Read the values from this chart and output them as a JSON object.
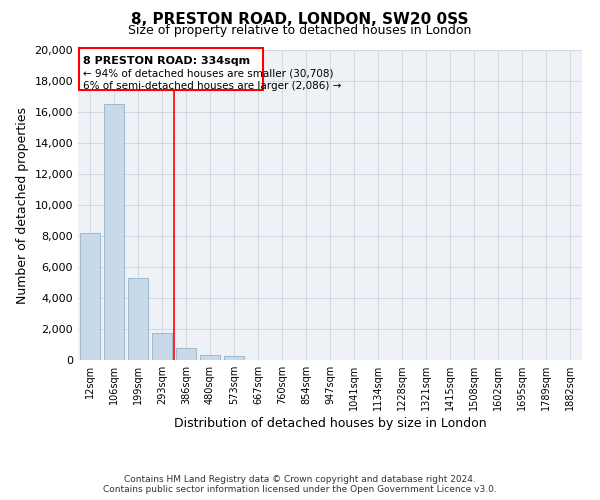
{
  "title": "8, PRESTON ROAD, LONDON, SW20 0SS",
  "subtitle": "Size of property relative to detached houses in London",
  "xlabel": "Distribution of detached houses by size in London",
  "ylabel": "Number of detached properties",
  "bar_labels": [
    "12sqm",
    "106sqm",
    "199sqm",
    "293sqm",
    "386sqm",
    "480sqm",
    "573sqm",
    "667sqm",
    "760sqm",
    "854sqm",
    "947sqm",
    "1041sqm",
    "1134sqm",
    "1228sqm",
    "1321sqm",
    "1415sqm",
    "1508sqm",
    "1602sqm",
    "1695sqm",
    "1789sqm",
    "1882sqm"
  ],
  "bar_values": [
    8200,
    16500,
    5300,
    1750,
    750,
    300,
    230,
    0,
    0,
    0,
    0,
    0,
    0,
    0,
    0,
    0,
    0,
    0,
    0,
    0,
    0
  ],
  "bar_color": "#c8daea",
  "bar_edge_color": "#a0b8cc",
  "vline_x": 3.5,
  "vline_color": "red",
  "annotation_title": "8 PRESTON ROAD: 334sqm",
  "annotation_line1": "← 94% of detached houses are smaller (30,708)",
  "annotation_line2": "6% of semi-detached houses are larger (2,086) →",
  "annotation_box_color": "white",
  "annotation_box_edge": "red",
  "ylim": [
    0,
    20000
  ],
  "yticks": [
    0,
    2000,
    4000,
    6000,
    8000,
    10000,
    12000,
    14000,
    16000,
    18000,
    20000
  ],
  "grid_color": "#d0d8e0",
  "bg_color": "#eef2f6",
  "footer_line1": "Contains HM Land Registry data © Crown copyright and database right 2024.",
  "footer_line2": "Contains public sector information licensed under the Open Government Licence v3.0."
}
